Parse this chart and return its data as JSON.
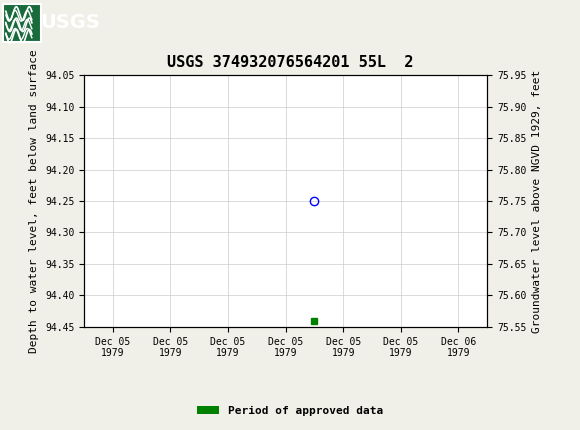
{
  "title": "USGS 374932076564201 55L  2",
  "ylabel_left": "Depth to water level, feet below land surface",
  "ylabel_right": "Groundwater level above NGVD 1929, feet",
  "ylim_left": [
    94.45,
    94.05
  ],
  "ylim_right": [
    75.55,
    75.95
  ],
  "yticks_left": [
    94.05,
    94.1,
    94.15,
    94.2,
    94.25,
    94.3,
    94.35,
    94.4,
    94.45
  ],
  "yticks_right": [
    75.95,
    75.9,
    75.85,
    75.8,
    75.75,
    75.7,
    75.65,
    75.6,
    75.55
  ],
  "data_point_x": 3.5,
  "data_point_y": 94.25,
  "approved_point_x": 3.5,
  "approved_point_y": 94.44,
  "x_tick_labels": [
    "Dec 05\n1979",
    "Dec 05\n1979",
    "Dec 05\n1979",
    "Dec 05\n1979",
    "Dec 05\n1979",
    "Dec 05\n1979",
    "Dec 06\n1979"
  ],
  "x_tick_positions": [
    0,
    1,
    2,
    3,
    4,
    5,
    6
  ],
  "xlim": [
    -0.5,
    6.5
  ],
  "header_color": "#1a6b3c",
  "grid_color": "#cccccc",
  "background_color": "#f0f0e8",
  "plot_bg_color": "#ffffff",
  "legend_label": "Period of approved data",
  "legend_color": "#008000",
  "title_fontsize": 11,
  "axis_label_fontsize": 8,
  "tick_fontsize": 7,
  "font_family": "monospace"
}
